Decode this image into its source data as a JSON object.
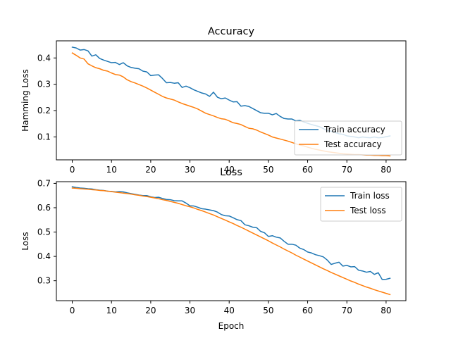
{
  "chart_data": [
    {
      "type": "line",
      "title": "Accuracy",
      "xlabel": "",
      "ylabel": "Hamming Loss",
      "xlim": [
        -4.05,
        85.05
      ],
      "ylim": [
        0.013,
        0.465
      ],
      "xticks": [
        0,
        10,
        20,
        30,
        40,
        50,
        60,
        70,
        80
      ],
      "yticks": [
        0.1,
        0.2,
        0.3,
        0.4
      ],
      "grid": false,
      "legend": "lower-right",
      "series": [
        {
          "name": "Train accuracy",
          "color": "#1f77b4",
          "x": [
            0,
            1,
            2,
            3,
            4,
            5,
            6,
            7,
            8,
            9,
            10,
            11,
            12,
            13,
            14,
            15,
            16,
            17,
            18,
            19,
            20,
            21,
            22,
            23,
            24,
            25,
            26,
            27,
            28,
            29,
            30,
            31,
            32,
            33,
            34,
            35,
            36,
            37,
            38,
            39,
            40,
            41,
            42,
            43,
            44,
            45,
            46,
            47,
            48,
            49,
            50,
            51,
            52,
            53,
            54,
            55,
            56,
            57,
            58,
            59,
            60,
            61,
            62,
            63,
            64,
            65,
            66,
            67,
            68,
            69,
            70,
            71,
            72,
            73,
            74,
            75,
            76,
            77,
            78,
            79,
            80,
            81
          ],
          "values": [
            0.441,
            0.438,
            0.43,
            0.432,
            0.427,
            0.407,
            0.412,
            0.398,
            0.392,
            0.387,
            0.382,
            0.383,
            0.375,
            0.382,
            0.37,
            0.364,
            0.361,
            0.359,
            0.35,
            0.347,
            0.333,
            0.335,
            0.336,
            0.322,
            0.306,
            0.307,
            0.304,
            0.306,
            0.288,
            0.293,
            0.287,
            0.279,
            0.273,
            0.267,
            0.263,
            0.254,
            0.27,
            0.251,
            0.245,
            0.248,
            0.24,
            0.233,
            0.234,
            0.217,
            0.219,
            0.216,
            0.208,
            0.2,
            0.192,
            0.19,
            0.19,
            0.184,
            0.189,
            0.178,
            0.17,
            0.168,
            0.168,
            0.161,
            0.163,
            0.157,
            0.152,
            0.147,
            0.143,
            0.139,
            0.132,
            0.124,
            0.122,
            0.117,
            0.112,
            0.11,
            0.104,
            0.102,
            0.1,
            0.097,
            0.1,
            0.098,
            0.097,
            0.1,
            0.097,
            0.098,
            0.101,
            0.104
          ]
        },
        {
          "name": "Test accuracy",
          "color": "#ff7f0e",
          "x": [
            0,
            1,
            2,
            3,
            4,
            5,
            6,
            7,
            8,
            9,
            10,
            11,
            12,
            13,
            14,
            15,
            16,
            17,
            18,
            19,
            20,
            21,
            22,
            23,
            24,
            25,
            26,
            27,
            28,
            29,
            30,
            31,
            32,
            33,
            34,
            35,
            36,
            37,
            38,
            39,
            40,
            41,
            42,
            43,
            44,
            45,
            46,
            47,
            48,
            49,
            50,
            51,
            52,
            53,
            54,
            55,
            56,
            57,
            58,
            59,
            60,
            61,
            62,
            63,
            64,
            65,
            66,
            67,
            68,
            69,
            70,
            71,
            72,
            73,
            74,
            75,
            76,
            77,
            78,
            79,
            80,
            81
          ],
          "values": [
            0.419,
            0.41,
            0.4,
            0.396,
            0.378,
            0.37,
            0.363,
            0.359,
            0.353,
            0.35,
            0.343,
            0.337,
            0.335,
            0.328,
            0.317,
            0.31,
            0.305,
            0.299,
            0.293,
            0.286,
            0.278,
            0.27,
            0.262,
            0.254,
            0.248,
            0.244,
            0.24,
            0.233,
            0.227,
            0.222,
            0.217,
            0.212,
            0.206,
            0.198,
            0.19,
            0.185,
            0.18,
            0.174,
            0.169,
            0.167,
            0.161,
            0.154,
            0.151,
            0.147,
            0.14,
            0.133,
            0.131,
            0.126,
            0.119,
            0.113,
            0.107,
            0.1,
            0.096,
            0.092,
            0.088,
            0.084,
            0.079,
            0.074,
            0.069,
            0.066,
            0.061,
            0.057,
            0.053,
            0.05,
            0.047,
            0.044,
            0.042,
            0.04,
            0.038,
            0.036,
            0.035,
            0.034,
            0.033,
            0.033,
            0.032,
            0.031,
            0.031,
            0.03,
            0.03,
            0.029,
            0.029,
            0.028
          ]
        }
      ]
    },
    {
      "type": "line",
      "title": "Loss",
      "xlabel": "Epoch",
      "ylabel": "Loss",
      "xlim": [
        -4.05,
        85.05
      ],
      "ylim": [
        0.218,
        0.707
      ],
      "xticks": [
        0,
        10,
        20,
        30,
        40,
        50,
        60,
        70,
        80
      ],
      "yticks": [
        0.3,
        0.4,
        0.5,
        0.6,
        0.7
      ],
      "grid": false,
      "legend": "upper-right",
      "series": [
        {
          "name": "Train loss",
          "color": "#1f77b4",
          "x": [
            0,
            1,
            2,
            3,
            4,
            5,
            6,
            7,
            8,
            9,
            10,
            11,
            12,
            13,
            14,
            15,
            16,
            17,
            18,
            19,
            20,
            21,
            22,
            23,
            24,
            25,
            26,
            27,
            28,
            29,
            30,
            31,
            32,
            33,
            34,
            35,
            36,
            37,
            38,
            39,
            40,
            41,
            42,
            43,
            44,
            45,
            46,
            47,
            48,
            49,
            50,
            51,
            52,
            53,
            54,
            55,
            56,
            57,
            58,
            59,
            60,
            61,
            62,
            63,
            64,
            65,
            66,
            67,
            68,
            69,
            70,
            71,
            72,
            73,
            74,
            75,
            76,
            77,
            78,
            79,
            80,
            81
          ],
          "values": [
            0.686,
            0.683,
            0.681,
            0.68,
            0.678,
            0.677,
            0.674,
            0.672,
            0.671,
            0.668,
            0.667,
            0.665,
            0.666,
            0.665,
            0.661,
            0.658,
            0.655,
            0.652,
            0.65,
            0.65,
            0.645,
            0.642,
            0.643,
            0.638,
            0.634,
            0.633,
            0.629,
            0.628,
            0.628,
            0.619,
            0.608,
            0.607,
            0.602,
            0.596,
            0.594,
            0.591,
            0.588,
            0.582,
            0.572,
            0.567,
            0.566,
            0.559,
            0.551,
            0.547,
            0.53,
            0.526,
            0.52,
            0.518,
            0.503,
            0.497,
            0.482,
            0.485,
            0.479,
            0.476,
            0.462,
            0.45,
            0.45,
            0.446,
            0.434,
            0.428,
            0.418,
            0.414,
            0.407,
            0.403,
            0.398,
            0.385,
            0.367,
            0.372,
            0.376,
            0.36,
            0.363,
            0.357,
            0.358,
            0.343,
            0.34,
            0.335,
            0.338,
            0.326,
            0.333,
            0.305,
            0.306,
            0.31
          ]
        },
        {
          "name": "Test loss",
          "color": "#ff7f0e",
          "x": [
            0,
            1,
            2,
            3,
            4,
            5,
            6,
            7,
            8,
            9,
            10,
            11,
            12,
            13,
            14,
            15,
            16,
            17,
            18,
            19,
            20,
            21,
            22,
            23,
            24,
            25,
            26,
            27,
            28,
            29,
            30,
            31,
            32,
            33,
            34,
            35,
            36,
            37,
            38,
            39,
            40,
            41,
            42,
            43,
            44,
            45,
            46,
            47,
            48,
            49,
            50,
            51,
            52,
            53,
            54,
            55,
            56,
            57,
            58,
            59,
            60,
            61,
            62,
            63,
            64,
            65,
            66,
            67,
            68,
            69,
            70,
            71,
            72,
            73,
            74,
            75,
            76,
            77,
            78,
            79,
            80,
            81
          ],
          "values": [
            0.681,
            0.68,
            0.678,
            0.677,
            0.676,
            0.674,
            0.673,
            0.671,
            0.67,
            0.668,
            0.666,
            0.664,
            0.662,
            0.66,
            0.658,
            0.656,
            0.653,
            0.651,
            0.648,
            0.646,
            0.643,
            0.64,
            0.637,
            0.633,
            0.63,
            0.626,
            0.622,
            0.618,
            0.613,
            0.608,
            0.604,
            0.599,
            0.593,
            0.588,
            0.582,
            0.576,
            0.57,
            0.563,
            0.556,
            0.549,
            0.542,
            0.535,
            0.527,
            0.52,
            0.512,
            0.504,
            0.496,
            0.488,
            0.48,
            0.472,
            0.464,
            0.455,
            0.447,
            0.439,
            0.43,
            0.422,
            0.414,
            0.405,
            0.397,
            0.389,
            0.381,
            0.373,
            0.365,
            0.357,
            0.349,
            0.342,
            0.334,
            0.327,
            0.32,
            0.313,
            0.306,
            0.299,
            0.293,
            0.286,
            0.28,
            0.274,
            0.269,
            0.263,
            0.258,
            0.253,
            0.248,
            0.243
          ]
        }
      ]
    }
  ]
}
